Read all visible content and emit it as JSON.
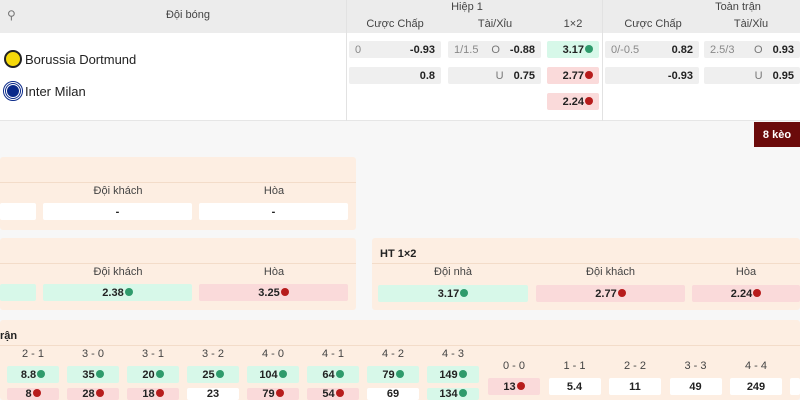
{
  "header": {
    "team_col": "Đội bóng",
    "half": "Hiệp 1",
    "full": "Toàn trận",
    "handicap": "Cược Chấp",
    "over_under": "Tài/Xỉu",
    "one_x_two": "1×2"
  },
  "teams": [
    {
      "name": "Borussia Dortmund",
      "logo_color": "#f5d90a"
    },
    {
      "name": "Inter Milan",
      "logo_color": "#0b2a8a"
    }
  ],
  "half": {
    "handicap": [
      {
        "line": "0",
        "odds": "-0.93"
      },
      {
        "line": "",
        "odds": "0.8"
      }
    ],
    "over_under": [
      {
        "line": "1/1.5",
        "side": "O",
        "odds": "-0.88"
      },
      {
        "line": "",
        "side": "U",
        "odds": "0.75"
      }
    ],
    "one_x_two": [
      {
        "odds": "3.17",
        "trend": "up"
      },
      {
        "odds": "2.77",
        "trend": "down"
      },
      {
        "odds": "2.24",
        "trend": "down"
      }
    ]
  },
  "full": {
    "handicap": [
      {
        "line": "0/-0.5",
        "odds": "0.82"
      },
      {
        "line": "",
        "odds": "-0.93"
      }
    ],
    "over_under": [
      {
        "line": "2.5/3",
        "side": "O",
        "odds": "0.93"
      },
      {
        "line": "",
        "side": "U",
        "odds": "0.95"
      }
    ]
  },
  "more_button": "8 kèo",
  "market1": {
    "labels": [
      "Đội khách",
      "Hòa"
    ],
    "values": [
      "-",
      "-"
    ]
  },
  "market2": {
    "labels": [
      "Đội khách",
      "Hòa"
    ],
    "values": [
      {
        "v": "2.38",
        "t": "up"
      },
      {
        "v": "3.25",
        "t": "down"
      }
    ]
  },
  "ht": {
    "title": "HT 1×2",
    "labels": [
      "Đội nhà",
      "Đội khách",
      "Hòa"
    ],
    "values": [
      {
        "v": "3.17",
        "t": "up"
      },
      {
        "v": "2.77",
        "t": "down"
      },
      {
        "v": "2.24",
        "t": "down"
      }
    ]
  },
  "scores": {
    "title": "rận",
    "left": [
      {
        "s": "2 - 1",
        "a": "8.8",
        "b": "8"
      },
      {
        "s": "3 - 0",
        "a": "35",
        "b": "28"
      },
      {
        "s": "3 - 1",
        "a": "20",
        "b": "18"
      },
      {
        "s": "3 - 2",
        "a": "25",
        "b": "23"
      },
      {
        "s": "4 - 0",
        "a": "104",
        "b": "79"
      },
      {
        "s": "4 - 1",
        "a": "64",
        "b": "54"
      },
      {
        "s": "4 - 2",
        "a": "79",
        "b": "69"
      },
      {
        "s": "4 - 3",
        "a": "149",
        "b": "134"
      }
    ],
    "left_b_trend": [
      "down",
      "down",
      "down",
      "",
      "down",
      "down",
      "",
      "up"
    ],
    "draws": [
      {
        "s": "0 - 0",
        "v": "13",
        "t": "down"
      },
      {
        "s": "1 - 1",
        "v": "5.4",
        "t": ""
      },
      {
        "s": "2 - 2",
        "v": "11",
        "t": ""
      },
      {
        "s": "3 - 3",
        "v": "49",
        "t": ""
      },
      {
        "s": "4 - 4",
        "v": "249",
        "t": ""
      }
    ]
  },
  "colors": {
    "accent": "#6b0b0b",
    "up": "#2f9b6c",
    "down": "#b71c1c",
    "card": "#fdeee2"
  }
}
